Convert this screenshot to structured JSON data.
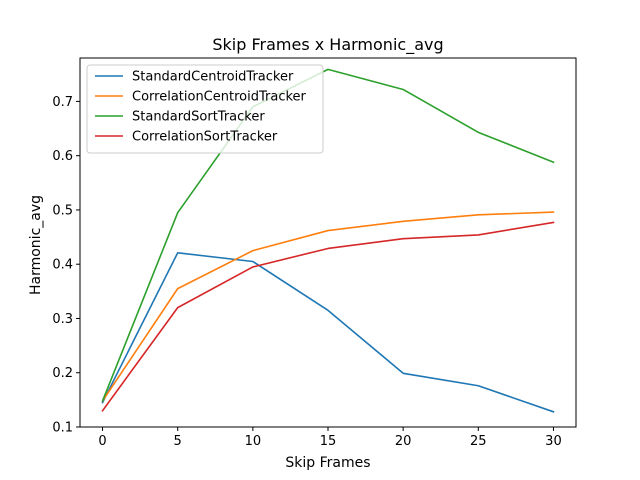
{
  "chart_data": {
    "type": "line",
    "title": "Skip Frames x Harmonic_avg",
    "xlabel": "Skip Frames",
    "ylabel": "Harmonic_avg",
    "x": [
      0,
      5,
      10,
      15,
      20,
      25,
      30
    ],
    "xlim": [
      -1.5,
      31.5
    ],
    "ylim": [
      0.1,
      0.78
    ],
    "xticks": [
      0,
      5,
      10,
      15,
      20,
      25,
      30
    ],
    "yticks": [
      0.1,
      0.2,
      0.3,
      0.4,
      0.5,
      0.6,
      0.7
    ],
    "ytick_labels": [
      "0.1",
      "0.2",
      "0.3",
      "0.4",
      "0.5",
      "0.6",
      "0.7"
    ],
    "grid": false,
    "legend_position": "top-left",
    "series": [
      {
        "name": "StandardCentroidTracker",
        "color": "#1f77b4",
        "values": [
          0.145,
          0.421,
          0.405,
          0.315,
          0.199,
          0.176,
          0.128
        ]
      },
      {
        "name": "CorrelationCentroidTracker",
        "color": "#ff7f0e",
        "values": [
          0.148,
          0.355,
          0.425,
          0.462,
          0.479,
          0.491,
          0.496
        ]
      },
      {
        "name": "StandardSortTracker",
        "color": "#2ca02c",
        "values": [
          0.148,
          0.495,
          0.69,
          0.759,
          0.722,
          0.643,
          0.588
        ]
      },
      {
        "name": "CorrelationSortTracker",
        "color": "#d62728",
        "values": [
          0.13,
          0.32,
          0.395,
          0.429,
          0.447,
          0.454,
          0.477
        ]
      }
    ]
  }
}
